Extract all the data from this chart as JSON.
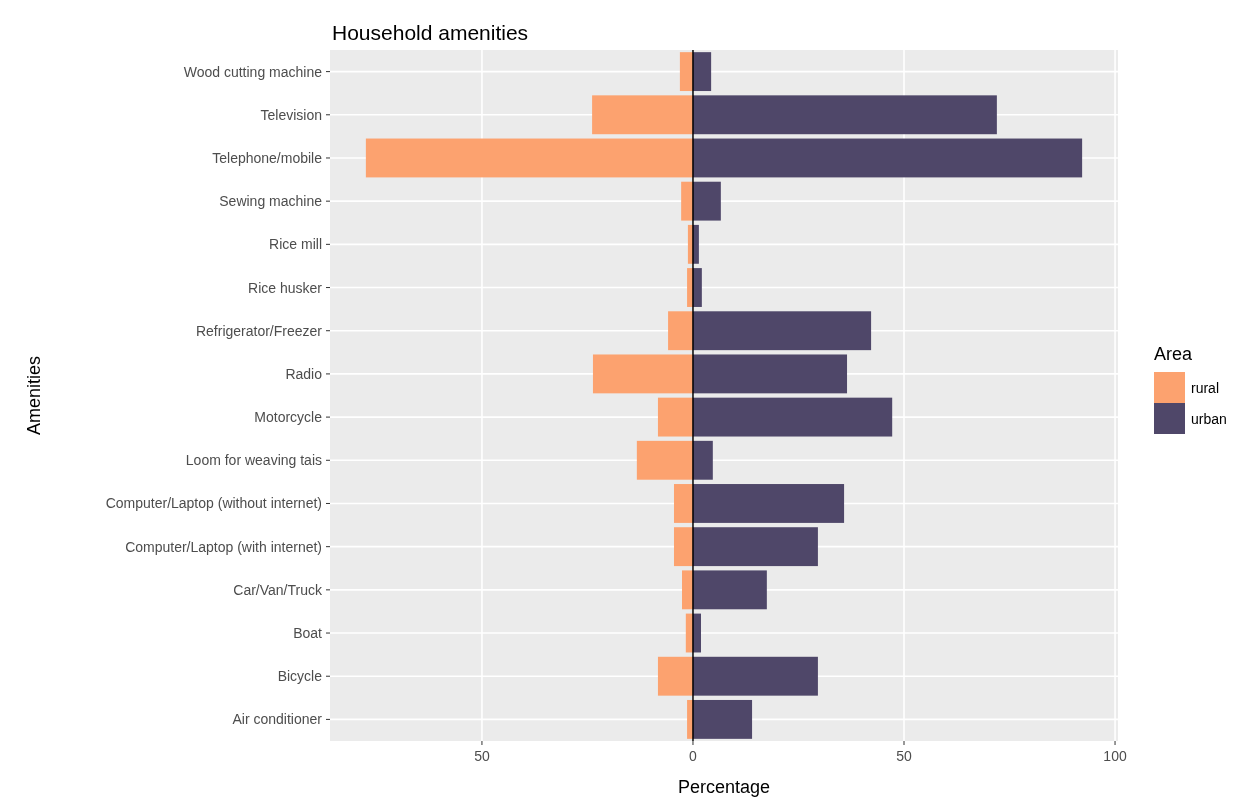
{
  "chart_data": {
    "type": "bar",
    "title": "Household amenities",
    "xlabel": "Percentage",
    "ylabel": "Amenities",
    "legend_title": "Area",
    "orientation": "horizontal",
    "stacked": true,
    "categories": [
      "Wood cutting machine",
      "Television",
      "Telephone/mobile",
      "Sewing machine",
      "Rice mill",
      "Rice husker",
      "Refrigerator/Freezer",
      "Radio",
      "Motorcycle",
      "Loom for weaving tais",
      "Computer/Laptop (without internet)",
      "Computer/Laptop (with internet)",
      "Car/Van/Truck",
      "Boat",
      "Bicycle",
      "Air conditioner"
    ],
    "series": [
      {
        "name": "rural",
        "color": "#fca26f",
        "values": [
          -3.1,
          -23.9,
          -77.5,
          -2.8,
          -1.2,
          -1.4,
          -5.9,
          -23.7,
          -8.3,
          -13.3,
          -4.5,
          -4.5,
          -2.6,
          -1.7,
          -8.3,
          -1.4
        ]
      },
      {
        "name": "urban",
        "color": "#4f4769",
        "values": [
          4.3,
          72.0,
          92.2,
          6.6,
          1.4,
          2.1,
          42.2,
          36.5,
          47.2,
          4.7,
          35.8,
          29.6,
          17.5,
          1.9,
          29.6,
          14.0
        ]
      }
    ],
    "xlim": [
      -86,
      100.7
    ],
    "xticks": [
      {
        "value": -50,
        "label": "50"
      },
      0,
      50,
      100
    ],
    "ref_lines": [
      {
        "axis": "x",
        "value": 0,
        "color": "#000000"
      }
    ],
    "grid": true,
    "legend": "right"
  }
}
